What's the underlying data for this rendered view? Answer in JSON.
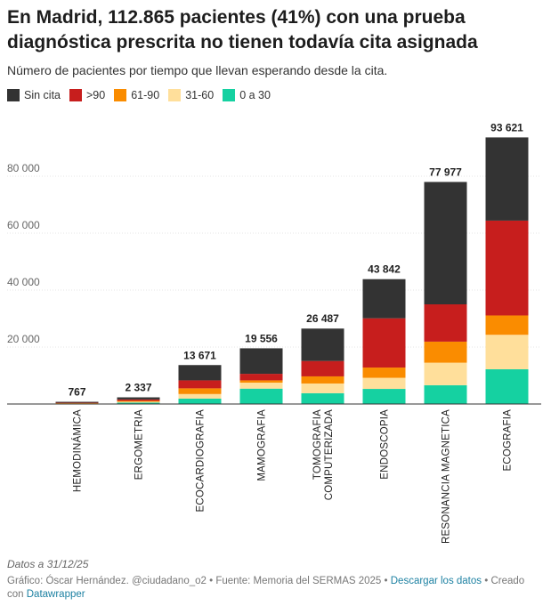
{
  "header": {
    "title": "En Madrid, 112.865 pacientes (41%) con una prueba diagnóstica prescrita no tienen todavía cita asignada",
    "subtitle": "Número de pacientes por tiempo que llevan esperando desde la cita."
  },
  "legend": [
    {
      "label": "Sin cita",
      "color": "#333333"
    },
    {
      "label": ">90",
      "color": "#c71e1d"
    },
    {
      "label": "61-90",
      "color": "#fa8c00"
    },
    {
      "label": "31-60",
      "color": "#ffdf9b"
    },
    {
      "label": "0 a 30",
      "color": "#15d1a1"
    }
  ],
  "chart_data": {
    "type": "bar",
    "stacked": true,
    "ylim": [
      0,
      95000
    ],
    "yticks": [
      "20 000",
      "40 000",
      "60 000",
      "80 000"
    ],
    "ytick_values": [
      20000,
      40000,
      60000,
      80000
    ],
    "grid": true,
    "categories": [
      "HEMODINÁMICA",
      "ERGOMETRIA",
      "ECOCARDIOGRAFIA",
      "MAMOGRAFIA",
      "TOMOGRAFIA COMPUTERIZADA",
      "ENDOSCOPIA",
      "RESONANCIA MAGNETICA",
      "ECOGRAFIA"
    ],
    "totals": [
      767,
      2337,
      13671,
      19556,
      26487,
      43842,
      77977,
      93621
    ],
    "total_labels": [
      "767",
      "2 337",
      "13 671",
      "19 556",
      "26 487",
      "43 842",
      "77 977",
      "93 621"
    ],
    "series": [
      {
        "name": "0 a 30",
        "color": "#15d1a1",
        "values": [
          150,
          500,
          1900,
          5400,
          3800,
          5300,
          6600,
          12200
        ]
      },
      {
        "name": "31-60",
        "color": "#ffdf9b",
        "values": [
          100,
          300,
          1600,
          2100,
          3400,
          3900,
          7900,
          12100
        ]
      },
      {
        "name": "61-90",
        "color": "#fa8c00",
        "values": [
          100,
          300,
          2000,
          800,
          2500,
          3600,
          7400,
          6800
        ]
      },
      {
        "name": ">90",
        "color": "#c71e1d",
        "values": [
          100,
          500,
          2800,
          2300,
          5400,
          17300,
          13100,
          33300
        ]
      },
      {
        "name": "Sin cita",
        "color": "#333333",
        "values": [
          317,
          737,
          5371,
          8956,
          11387,
          13742,
          42977,
          29221
        ]
      }
    ]
  },
  "notes": "Datos a 31/12/25",
  "footer": {
    "prefix": "Gráfico: Óscar Hernández. @ciudadano_o2 • Fuente: Memoria del SERMAS 2025 • ",
    "download_link": "Descargar los datos",
    "middle": " • Creado con ",
    "datawrapper_link": "Datawrapper"
  }
}
